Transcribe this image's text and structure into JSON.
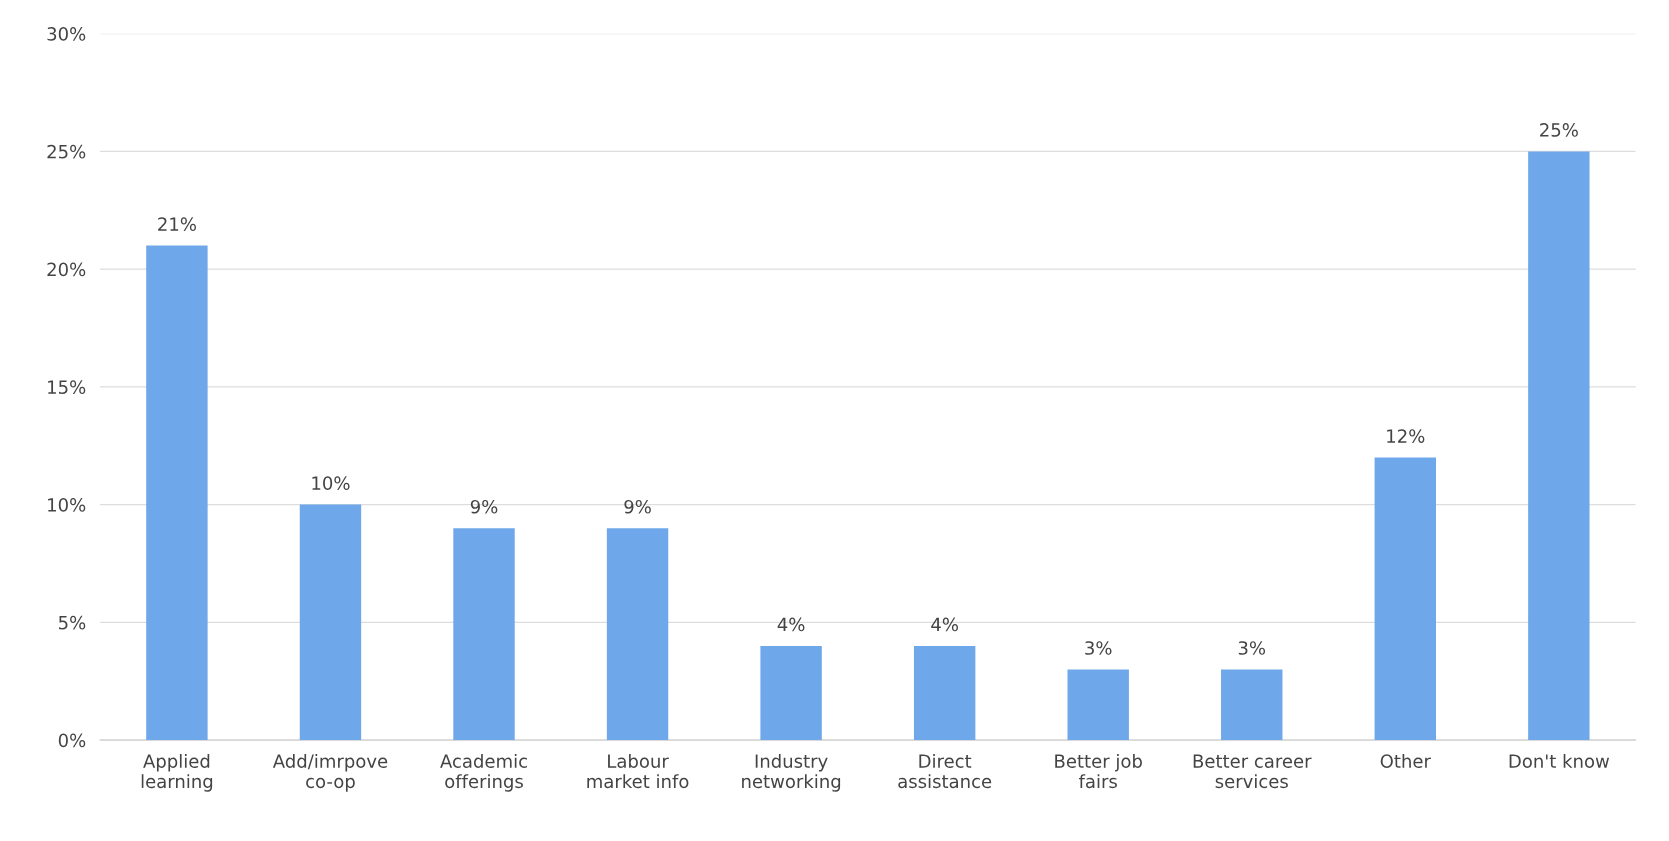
{
  "chart_data": {
    "type": "bar",
    "categories": [
      "Applied\nlearning",
      "Add/imrpove\nco-op",
      "Academic\nofferings",
      "Labour\nmarket info",
      "Industry\nnetworking",
      "Direct\nassistance",
      "Better job\nfairs",
      "Better career\nservices",
      "Other",
      "Don't know"
    ],
    "values": [
      21,
      10,
      9,
      9,
      4,
      4,
      3,
      3,
      12,
      25
    ],
    "value_labels": [
      "21%",
      "10%",
      "9%",
      "9%",
      "4%",
      "4%",
      "3%",
      "3%",
      "12%",
      "25%"
    ],
    "color": "#6ea8ea",
    "ylim": [
      0,
      30
    ],
    "yticks": [
      {
        "value": 0,
        "label": "0%"
      },
      {
        "value": 5,
        "label": "5%"
      },
      {
        "value": 10,
        "label": "10%"
      },
      {
        "value": 15,
        "label": "15%"
      },
      {
        "value": 20,
        "label": "20%"
      },
      {
        "value": 25,
        "label": "25%"
      },
      {
        "value": 30,
        "label": "30%"
      }
    ],
    "grid": "y",
    "legend": false
  }
}
